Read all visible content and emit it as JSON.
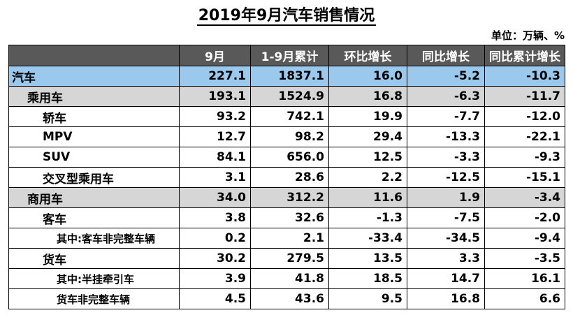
{
  "title": "2019年9月汽车销售情况",
  "unit_note": "单位：万辆、%",
  "table": {
    "headers": [
      "",
      "9月",
      "1-9月累计",
      "环比增长",
      "同比增长",
      "同比累计增长"
    ],
    "rows": [
      {
        "level": 0,
        "label": "汽车",
        "values": [
          "227.1",
          "1837.1",
          "16.0",
          "-5.2",
          "-10.3"
        ]
      },
      {
        "level": 1,
        "label": "乘用车",
        "values": [
          "193.1",
          "1524.9",
          "16.8",
          "-6.3",
          "-11.7"
        ]
      },
      {
        "level": 2,
        "label": "轿车",
        "values": [
          "93.2",
          "742.1",
          "19.9",
          "-7.7",
          "-12.0"
        ]
      },
      {
        "level": 2,
        "label": "MPV",
        "values": [
          "12.7",
          "98.2",
          "29.4",
          "-13.3",
          "-22.1"
        ]
      },
      {
        "level": 2,
        "label": "SUV",
        "values": [
          "84.1",
          "656.0",
          "12.5",
          "-3.3",
          "-9.3"
        ]
      },
      {
        "level": 2,
        "label": "交叉型乘用车",
        "values": [
          "3.1",
          "28.6",
          "2.2",
          "-12.5",
          "-15.1"
        ]
      },
      {
        "level": 1,
        "label": "商用车",
        "values": [
          "34.0",
          "312.2",
          "11.6",
          "1.9",
          "-3.4"
        ]
      },
      {
        "level": 2,
        "label": "客车",
        "values": [
          "3.8",
          "32.6",
          "-1.3",
          "-7.5",
          "-2.0"
        ]
      },
      {
        "level": 3,
        "label": "其中:客车非完整车辆",
        "values": [
          "0.2",
          "2.1",
          "-33.4",
          "-34.5",
          "-9.4"
        ]
      },
      {
        "level": 2,
        "label": "货车",
        "values": [
          "30.2",
          "279.5",
          "13.5",
          "3.3",
          "-3.5"
        ]
      },
      {
        "level": 3,
        "label": "其中:半挂牵引车",
        "values": [
          "3.9",
          "41.8",
          "18.5",
          "14.7",
          "16.1"
        ]
      },
      {
        "level": 3,
        "label": "货车非完整车辆",
        "values": [
          "4.5",
          "43.6",
          "9.5",
          "16.8",
          "6.6"
        ]
      }
    ]
  },
  "colors": {
    "header_bg": "#595959",
    "total_row_bg": "#9bc9ee",
    "category_row_bg": "#d6d6d6",
    "body_bg": "#ffffff"
  }
}
